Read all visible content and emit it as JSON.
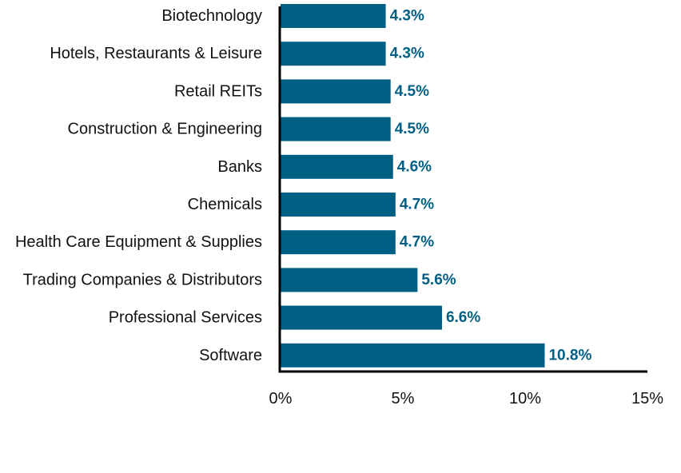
{
  "chart_data": {
    "type": "bar",
    "orientation": "horizontal",
    "categories": [
      "Biotechnology",
      "Hotels, Restaurants & Leisure",
      "Retail REITs",
      "Construction & Engineering",
      "Banks",
      "Chemicals",
      "Health Care Equipment & Supplies",
      "Trading Companies & Distributors",
      "Professional Services",
      "Software"
    ],
    "values": [
      4.3,
      4.3,
      4.5,
      4.5,
      4.6,
      4.7,
      4.7,
      5.6,
      6.6,
      10.8
    ],
    "value_labels": [
      "4.3%",
      "4.3%",
      "4.5%",
      "4.5%",
      "4.6%",
      "4.7%",
      "4.7%",
      "5.6%",
      "6.6%",
      "10.8%"
    ],
    "x_ticks": [
      0,
      5,
      10,
      15
    ],
    "x_tick_labels": [
      "0%",
      "5%",
      "10%",
      "15%"
    ],
    "xlim": [
      0,
      15
    ],
    "grid": false,
    "legend": "none",
    "bar_color": "#005f83",
    "label_color": "#005f83"
  }
}
